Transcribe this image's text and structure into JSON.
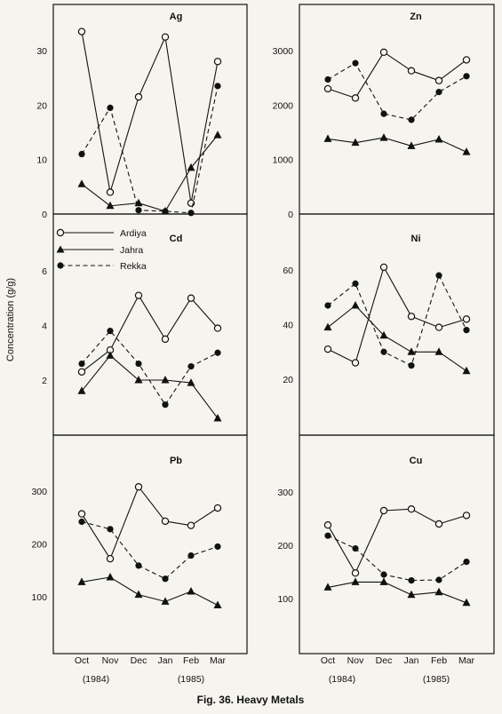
{
  "figure": {
    "caption": "Fig. 36. Heavy Metals",
    "ylabel": "Concentration (g/g)"
  },
  "legend": [
    {
      "name": "Ardiya",
      "marker": "open-circle",
      "line": "solid"
    },
    {
      "name": "Jahra",
      "marker": "filled-triangle",
      "line": "solid"
    },
    {
      "name": "Rekka",
      "marker": "filled-circle",
      "line": "dashed"
    }
  ],
  "xaxis": {
    "categories": [
      "Oct",
      "Nov",
      "Dec",
      "Jan",
      "Feb",
      "Mar"
    ],
    "year_labels": [
      "(1984)",
      "(1985)"
    ]
  },
  "colors": {
    "ink": "#111111",
    "paper": "#f6f4ef"
  },
  "chart_data": [
    {
      "type": "line",
      "title": "Ag",
      "ylim": [
        0,
        37
      ],
      "yticks": [
        0,
        10,
        20,
        30
      ],
      "categories": [
        "Oct",
        "Nov",
        "Dec",
        "Jan",
        "Feb",
        "Mar"
      ],
      "series": [
        {
          "name": "Ardiya",
          "values": [
            33.5,
            4,
            21.5,
            32.5,
            2,
            28
          ]
        },
        {
          "name": "Jahra",
          "values": [
            5.5,
            1.5,
            2,
            0.5,
            8.5,
            14.5
          ]
        },
        {
          "name": "Rekka",
          "values": [
            11,
            19.5,
            0.7,
            0.5,
            0.2,
            23.5
          ]
        }
      ]
    },
    {
      "type": "line",
      "title": "Zn",
      "ylim": [
        0,
        3300
      ],
      "yticks": [
        0,
        1000,
        2000,
        3000
      ],
      "categories": [
        "Oct",
        "Nov",
        "Dec",
        "Jan",
        "Feb",
        "Mar"
      ],
      "series": [
        {
          "name": "Ardiya",
          "values": [
            2300,
            2130,
            2970,
            2630,
            2450,
            2830
          ]
        },
        {
          "name": "Jahra",
          "values": [
            1380,
            1310,
            1400,
            1250,
            1370,
            1140
          ]
        },
        {
          "name": "Rekka",
          "values": [
            2470,
            2770,
            1840,
            1730,
            2240,
            2530
          ]
        }
      ]
    },
    {
      "type": "line",
      "title": "Cd",
      "ylim": [
        0,
        7.8
      ],
      "yticks": [
        2,
        4,
        6
      ],
      "categories": [
        "Oct",
        "Nov",
        "Dec",
        "Jan",
        "Feb",
        "Mar"
      ],
      "series": [
        {
          "name": "Ardiya",
          "values": [
            2.3,
            3.1,
            5.1,
            3.5,
            5.0,
            3.9
          ]
        },
        {
          "name": "Jahra",
          "values": [
            1.6,
            2.9,
            2.0,
            2.0,
            1.9,
            0.6
          ]
        },
        {
          "name": "Rekka",
          "values": [
            2.6,
            3.8,
            2.6,
            1.1,
            2.5,
            3.0
          ]
        }
      ]
    },
    {
      "type": "line",
      "title": "Ni",
      "ylim": [
        0,
        78
      ],
      "yticks": [
        20,
        40,
        60
      ],
      "categories": [
        "Oct",
        "Nov",
        "Dec",
        "Jan",
        "Feb",
        "Mar"
      ],
      "series": [
        {
          "name": "Ardiya",
          "values": [
            31,
            26,
            61,
            43,
            39,
            42
          ]
        },
        {
          "name": "Jahra",
          "values": [
            39,
            47,
            36,
            30,
            30,
            23
          ]
        },
        {
          "name": "Rekka",
          "values": [
            47,
            55,
            30,
            25,
            58,
            38
          ]
        }
      ]
    },
    {
      "type": "line",
      "title": "Pb",
      "ylim": [
        25,
        390
      ],
      "yticks": [
        100,
        200,
        300
      ],
      "categories": [
        "Oct",
        "Nov",
        "Dec",
        "Jan",
        "Feb",
        "Mar"
      ],
      "series": [
        {
          "name": "Ardiya",
          "values": [
            257,
            172,
            308,
            243,
            235,
            268
          ]
        },
        {
          "name": "Jahra",
          "values": [
            128,
            137,
            104,
            91,
            110,
            84
          ]
        },
        {
          "name": "Rekka",
          "values": [
            242,
            228,
            159,
            134,
            178,
            195
          ]
        }
      ]
    },
    {
      "type": "line",
      "title": "Cu",
      "ylim": [
        25,
        390
      ],
      "yticks": [
        100,
        200,
        300
      ],
      "categories": [
        "Oct",
        "Nov",
        "Dec",
        "Jan",
        "Feb",
        "Mar"
      ],
      "series": [
        {
          "name": "Ardiya",
          "values": [
            238,
            148,
            265,
            268,
            240,
            256
          ]
        },
        {
          "name": "Jahra",
          "values": [
            121,
            131,
            131,
            107,
            112,
            92
          ]
        },
        {
          "name": "Rekka",
          "values": [
            218,
            194,
            145,
            134,
            135,
            169
          ]
        }
      ]
    }
  ]
}
